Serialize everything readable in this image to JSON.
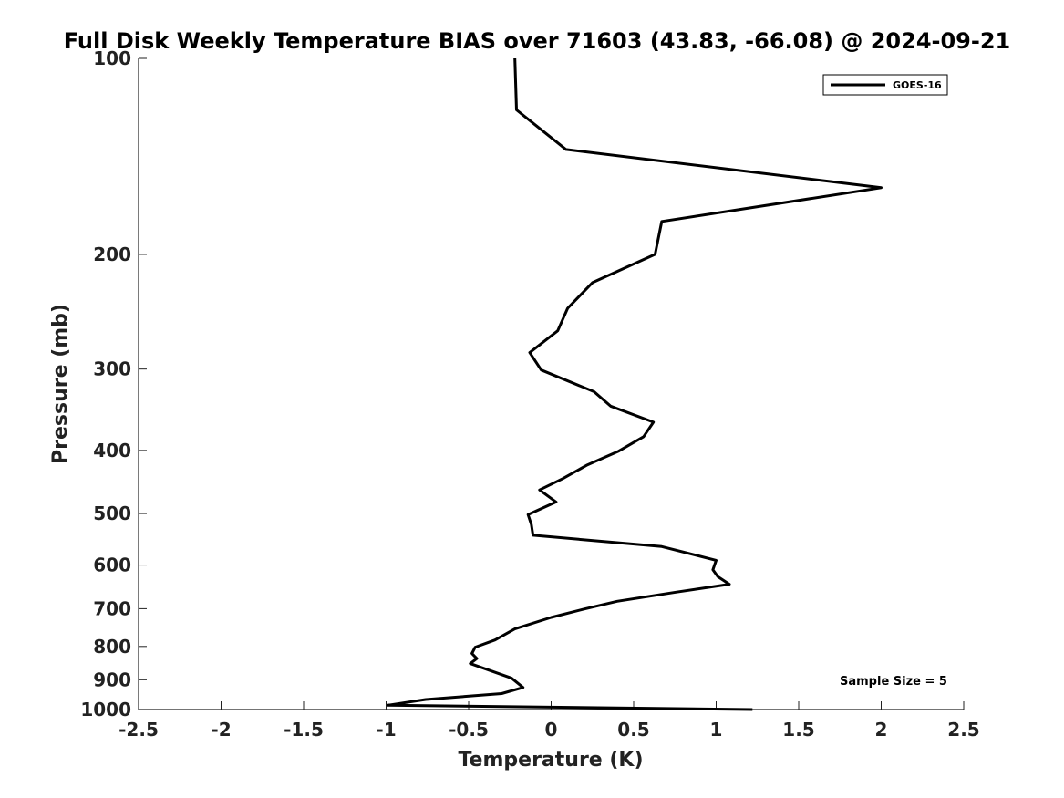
{
  "chart_data": {
    "type": "line",
    "title": "Full Disk Weekly Temperature BIAS over 71603 (43.83, -66.08) @ 2024-09-21",
    "xlabel": "Temperature (K)",
    "ylabel": "Pressure (mb)",
    "xlim": [
      -2.5,
      2.5
    ],
    "ylim": [
      1000,
      100
    ],
    "yscale": "log",
    "y_reversed": true,
    "x_ticks": [
      "-2.5",
      "-2",
      "-1.5",
      "-1",
      "-0.5",
      "0",
      "0.5",
      "1",
      "1.5",
      "2",
      "2.5"
    ],
    "y_ticks": [
      "100",
      "200",
      "300",
      "400",
      "500",
      "600",
      "700",
      "800",
      "900",
      "1000"
    ],
    "legend": {
      "placement": "top-right",
      "entries": [
        "GOES-16"
      ]
    },
    "annotations": [
      "Sample Size = 5"
    ],
    "grid": false,
    "series": [
      {
        "name": "GOES-16",
        "color": "#000000",
        "points": [
          {
            "x": -0.22,
            "y": 100
          },
          {
            "x": -0.21,
            "y": 120
          },
          {
            "x": 0.09,
            "y": 138
          },
          {
            "x": 2.0,
            "y": 158
          },
          {
            "x": 0.67,
            "y": 178
          },
          {
            "x": 0.63,
            "y": 200
          },
          {
            "x": 0.25,
            "y": 221
          },
          {
            "x": 0.1,
            "y": 242
          },
          {
            "x": 0.04,
            "y": 262
          },
          {
            "x": -0.13,
            "y": 283
          },
          {
            "x": -0.06,
            "y": 301
          },
          {
            "x": 0.26,
            "y": 325
          },
          {
            "x": 0.36,
            "y": 342
          },
          {
            "x": 0.62,
            "y": 362
          },
          {
            "x": 0.56,
            "y": 381
          },
          {
            "x": 0.41,
            "y": 401
          },
          {
            "x": 0.22,
            "y": 421
          },
          {
            "x": 0.07,
            "y": 442
          },
          {
            "x": -0.07,
            "y": 460
          },
          {
            "x": 0.03,
            "y": 480
          },
          {
            "x": -0.14,
            "y": 502
          },
          {
            "x": -0.12,
            "y": 520
          },
          {
            "x": -0.11,
            "y": 540
          },
          {
            "x": 0.67,
            "y": 562
          },
          {
            "x": 1.0,
            "y": 590
          },
          {
            "x": 0.98,
            "y": 610
          },
          {
            "x": 1.01,
            "y": 625
          },
          {
            "x": 1.08,
            "y": 642
          },
          {
            "x": 0.76,
            "y": 660
          },
          {
            "x": 0.4,
            "y": 682
          },
          {
            "x": 0.2,
            "y": 701
          },
          {
            "x": 0.0,
            "y": 722
          },
          {
            "x": -0.22,
            "y": 752
          },
          {
            "x": -0.34,
            "y": 782
          },
          {
            "x": -0.46,
            "y": 802
          },
          {
            "x": -0.48,
            "y": 820
          },
          {
            "x": -0.45,
            "y": 835
          },
          {
            "x": -0.49,
            "y": 850
          },
          {
            "x": -0.24,
            "y": 895
          },
          {
            "x": -0.17,
            "y": 925
          },
          {
            "x": -0.3,
            "y": 945
          },
          {
            "x": -0.76,
            "y": 965
          },
          {
            "x": -0.99,
            "y": 985
          },
          {
            "x": 1.22,
            "y": 1000
          }
        ]
      }
    ]
  }
}
